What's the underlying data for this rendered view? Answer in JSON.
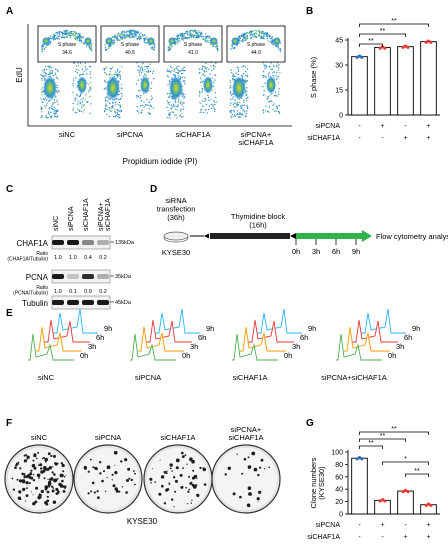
{
  "panels": {
    "A": {
      "letter": "A",
      "ylabel": "EdU",
      "xlabel": "Propidium iodide (PI)",
      "gate_label": "S phase",
      "samples": [
        {
          "label": "siNC",
          "value": "34.6"
        },
        {
          "label": "siPCNA",
          "value": "40.5"
        },
        {
          "label": "siCHAF1A",
          "value": "41.0"
        },
        {
          "label": "siPCNA+\nsiCHAF1A",
          "value": "44.0"
        }
      ]
    },
    "B": {
      "letter": "B"
    },
    "C": {
      "letter": "C",
      "lanes": [
        "siNC",
        "siPCNA",
        "siCHAF1A",
        "siPCNA+\nsiCHAF1A"
      ],
      "rows": [
        {
          "label": "CHAF1A",
          "ratio_label": "Ratio\n(CHAF1A/Tubulin)",
          "ratios": [
            "1.0",
            "1.0",
            "0.4",
            "0.2"
          ],
          "marker": "135kDa"
        },
        {
          "label": "PCNA",
          "ratio_label": "Ratio\n(PCNA/Tubulin)",
          "ratios": [
            "1.0",
            "0.1",
            "0.9",
            "0.2"
          ],
          "marker": "35kDa"
        },
        {
          "label": "Tubulin",
          "marker": "45kDa"
        }
      ]
    },
    "D": {
      "letter": "D",
      "step1": "siRNA\ntransfection\n(36h)",
      "cell_line": "KYSE30",
      "step2": "Thymidine block\n(16h)",
      "times": [
        "0h",
        "3h",
        "6h",
        "9h"
      ],
      "step3": "Flow cytometry analysis"
    },
    "E": {
      "letter": "E",
      "groups": [
        "siNC",
        "siPCNA",
        "siCHAF1A",
        "siPCNA+siCHAF1A"
      ],
      "times": [
        "0h",
        "3h",
        "6h",
        "9h"
      ],
      "colors": [
        "#4caf50",
        "#ff9800",
        "#e53935",
        "#29b6f6"
      ]
    },
    "F": {
      "letter": "F",
      "labels": [
        "siNC",
        "siPCNA",
        "siCHAF1A",
        "siPCNA+\nsiCHAF1A"
      ],
      "caption": "KYSE30"
    },
    "G": {
      "letter": "G"
    }
  },
  "chart_data": [
    {
      "type": "bar",
      "panel": "B",
      "categories": [
        "siNC",
        "siPCNA",
        "siCHAF1A",
        "siPCNA+siCHAF1A"
      ],
      "values": [
        35,
        40.5,
        41,
        44
      ],
      "ylabel": "S phase (%)",
      "ylim": [
        0,
        45
      ],
      "yticks": [
        0,
        15,
        30,
        45
      ],
      "factors": [
        {
          "label": "siPCNA",
          "signs": [
            "-",
            "+",
            "-",
            "+"
          ]
        },
        {
          "label": "siCHAF1A",
          "signs": [
            "-",
            "-",
            "+",
            "+"
          ]
        }
      ],
      "significance": [
        {
          "from": 0,
          "to": 1,
          "label": "**"
        },
        {
          "from": 0,
          "to": 2,
          "label": "**"
        },
        {
          "from": 0,
          "to": 3,
          "label": "**"
        }
      ],
      "colors": [
        "#2f6ab3",
        "#e53935",
        "#e53935",
        "#e53935"
      ]
    },
    {
      "type": "bar",
      "panel": "G",
      "categories": [
        "siNC",
        "siPCNA",
        "siCHAF1A",
        "siPCNA+siCHAF1A"
      ],
      "values": [
        90,
        22,
        37,
        15
      ],
      "ylabel": "Clone numbers\n(KYSE30)",
      "ylim": [
        0,
        100
      ],
      "yticks": [
        0,
        20,
        40,
        60,
        80,
        100
      ],
      "factors": [
        {
          "label": "siPCNA",
          "signs": [
            "-",
            "+",
            "-",
            "+"
          ]
        },
        {
          "label": "siCHAF1A",
          "signs": [
            "-",
            "-",
            "+",
            "+"
          ]
        }
      ],
      "significance": [
        {
          "from": 0,
          "to": 1,
          "label": "**"
        },
        {
          "from": 0,
          "to": 2,
          "label": "**"
        },
        {
          "from": 0,
          "to": 3,
          "label": "**"
        },
        {
          "from": 1,
          "to": 3,
          "label": "*"
        },
        {
          "from": 2,
          "to": 3,
          "label": "**"
        }
      ],
      "colors": [
        "#2f6ab3",
        "#e53935",
        "#e53935",
        "#e53935"
      ]
    }
  ]
}
